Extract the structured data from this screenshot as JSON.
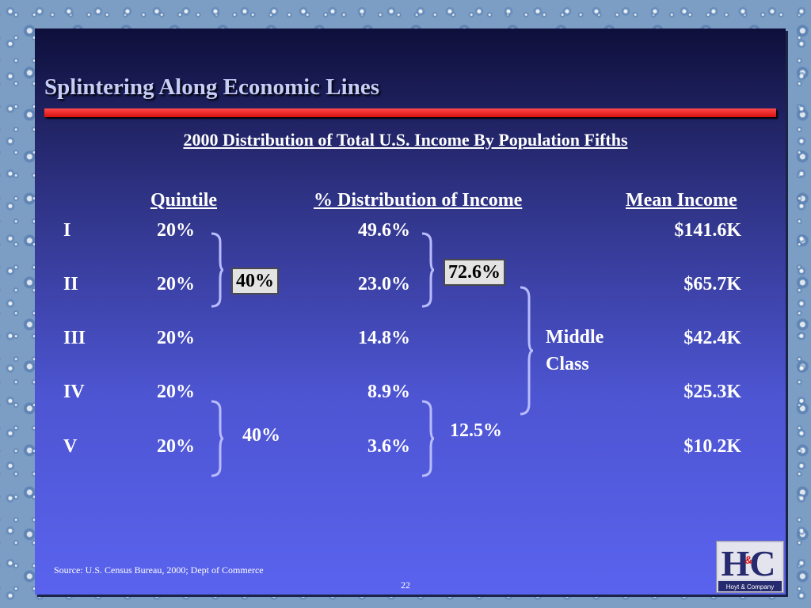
{
  "slide": {
    "title": "Splintering Along Economic Lines",
    "subtitle": "2000 Distribution of Total U.S. Income By Population Fifths",
    "source": "Source:  U.S. Census Bureau, 2000; Dept of Commerce",
    "page_number": "22"
  },
  "table": {
    "headers": {
      "quintile": "Quintile",
      "distribution": "% Distribution of Income",
      "mean": "Mean Income"
    },
    "rows": [
      {
        "rank": "I",
        "quintile": "20%",
        "distribution": "49.6%",
        "mean": "$141.6K"
      },
      {
        "rank": "II",
        "quintile": "20%",
        "distribution": "23.0%",
        "mean": "$65.7K"
      },
      {
        "rank": "III",
        "quintile": "20%",
        "distribution": "14.8%",
        "mean": "$42.4K"
      },
      {
        "rank": "IV",
        "quintile": "20%",
        "distribution": "8.9%",
        "mean": "$25.3K"
      },
      {
        "rank": "V",
        "quintile": "20%",
        "distribution": "3.6%",
        "mean": "$10.2K"
      }
    ]
  },
  "groups": {
    "top_population": "40%",
    "top_income": "72.6%",
    "bottom_population": "40%",
    "bottom_income": "12.5%",
    "middle_class_line1": "Middle",
    "middle_class_line2": "Class"
  },
  "logo": {
    "letters": "HC",
    "ampersand": "&",
    "caption": "Hoyt & Company"
  },
  "colors": {
    "title": "#c6cdf7",
    "accent_rule": "#e01010",
    "brace": "#b8bcff"
  }
}
